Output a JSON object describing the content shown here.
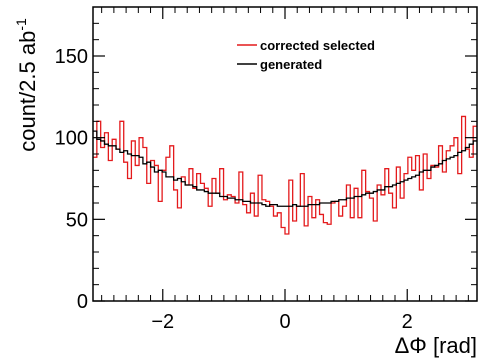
{
  "chart_data": {
    "type": "step",
    "xlabel": "ΔΦ [rad]",
    "ylabel": "count/2.5 ab",
    "ylabel_superscript": "-1",
    "xlim": [
      -3.1416,
      3.1416
    ],
    "ylim": [
      0,
      180
    ],
    "x_ticks": [
      -2,
      0,
      2
    ],
    "y_ticks": [
      0,
      50,
      100,
      150
    ],
    "x_tick_labels": [
      "−2",
      "0",
      "2"
    ],
    "y_tick_labels": [
      "0",
      "50",
      "100",
      "150"
    ],
    "legend_position": "top-right",
    "series": [
      {
        "name": "corrected selected",
        "color": "#e41a1c",
        "values": [
          88,
          110,
          94,
          103,
          86,
          99,
          93,
          110,
          85,
          75,
          98,
          83,
          100,
          94,
          72,
          86,
          83,
          61,
          80,
          88,
          95,
          68,
          57,
          76,
          71,
          81,
          69,
          78,
          72,
          69,
          58,
          75,
          66,
          81,
          62,
          65,
          64,
          60,
          79,
          59,
          54,
          66,
          52,
          77,
          62,
          61,
          58,
          52,
          54,
          45,
          41,
          74,
          49,
          58,
          78,
          46,
          64,
          51,
          62,
          53,
          48,
          47,
          60,
          61,
          52,
          58,
          71,
          51,
          69,
          51,
          80,
          67,
          63,
          49,
          71,
          65,
          81,
          66,
          57,
          82,
          63,
          78,
          88,
          80,
          89,
          68,
          90,
          75,
          83,
          82,
          95,
          79,
          92,
          95,
          100,
          78,
          113,
          93,
          88,
          107
        ]
      },
      {
        "name": "generated",
        "color": "#000000",
        "values": [
          104,
          99,
          98,
          96,
          95,
          95,
          93,
          91,
          92,
          90,
          89,
          89,
          88,
          84,
          85,
          82,
          79,
          80,
          79,
          76,
          76,
          74,
          75,
          73,
          71,
          71,
          70,
          68,
          68,
          67,
          66,
          66,
          66,
          64,
          64,
          63,
          63,
          62,
          62,
          61,
          61,
          60,
          60,
          60,
          59,
          58,
          59,
          59,
          58,
          58,
          58,
          58,
          59,
          58,
          58,
          58,
          59,
          59,
          59,
          60,
          60,
          60,
          61,
          61,
          62,
          62,
          63,
          63,
          64,
          64,
          65,
          66,
          66,
          67,
          68,
          68,
          70,
          70,
          71,
          72,
          73,
          74,
          75,
          76,
          77,
          79,
          80,
          80,
          82,
          83,
          84,
          86,
          87,
          88,
          89,
          91,
          92,
          94,
          96,
          98
        ]
      }
    ]
  }
}
